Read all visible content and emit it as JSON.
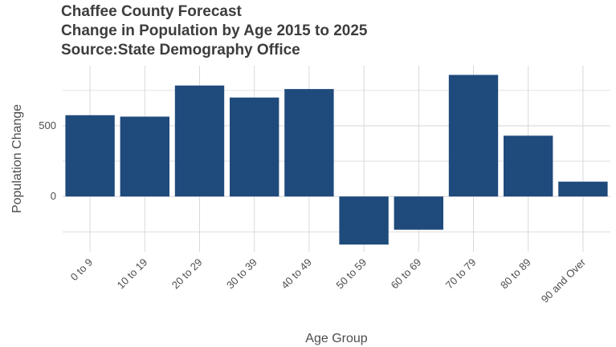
{
  "chart_data": {
    "type": "bar",
    "title_lines": [
      "Chaffee County Forecast",
      "Change in Population by Age 2015 to 2025",
      "Source:State Demography Office"
    ],
    "xlabel": "Age Group",
    "ylabel": "Population Change",
    "categories": [
      "0 to 9",
      "10 to 19",
      "20 to 29",
      "30 to 39",
      "40 to 49",
      "50 to 59",
      "60 to 69",
      "70 to 79",
      "80 to 89",
      "90 and Over"
    ],
    "values": [
      575,
      565,
      785,
      700,
      760,
      -340,
      -235,
      860,
      430,
      105
    ],
    "ylim": [
      -390,
      925
    ],
    "yticks": [
      0,
      500
    ],
    "grid": true,
    "bar_color": "#1f4a7c"
  }
}
